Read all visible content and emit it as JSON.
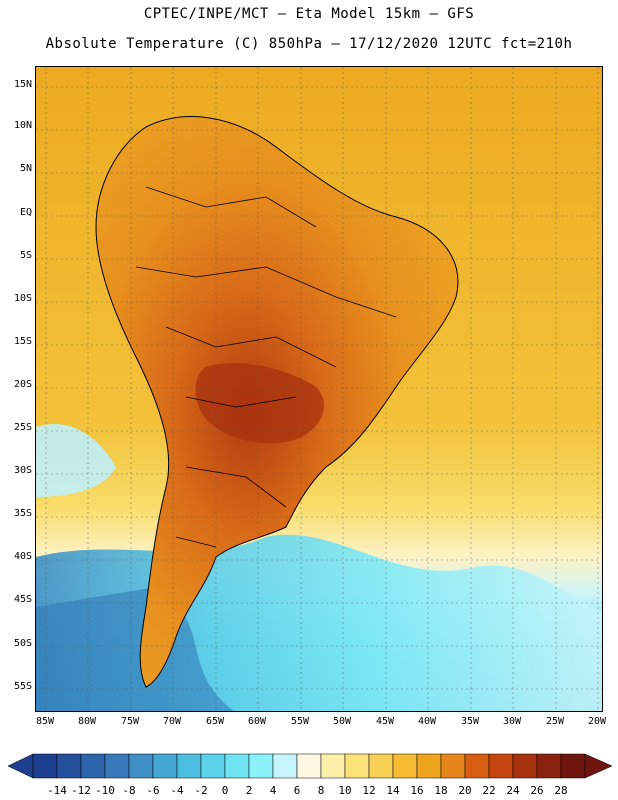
{
  "header": {
    "line1": "CPTEC/INPE/MCT –  Eta Model 15km – GFS",
    "line2": "Absolute Temperature (C) 850hPa – 17/12/2020 12UTC fct=210h"
  },
  "map": {
    "lat_labels": [
      "15N",
      "10N",
      "5N",
      "EQ",
      "5S",
      "10S",
      "15S",
      "20S",
      "25S",
      "30S",
      "35S",
      "40S",
      "45S",
      "50S",
      "55S"
    ],
    "lon_labels": [
      "85W",
      "80W",
      "75W",
      "70W",
      "65W",
      "60W",
      "55W",
      "50W",
      "45W",
      "40W",
      "35W",
      "30W",
      "25W",
      "20W"
    ]
  },
  "colorbar": {
    "labels": [
      "-14",
      "-12",
      "-10",
      "-8",
      "-6",
      "-4",
      "-2",
      "0",
      "2",
      "4",
      "6",
      "8",
      "10",
      "12",
      "14",
      "16",
      "18",
      "20",
      "22",
      "24",
      "26",
      "28"
    ],
    "colors": [
      "#1e3f8f",
      "#24509c",
      "#2e64ab",
      "#3a79b9",
      "#3f8fc6",
      "#44a6d3",
      "#4cbedf",
      "#5ad3ea",
      "#6ee4f2",
      "#8af2f8",
      "#c6f6fb",
      "#fdf6e1",
      "#fdf0a8",
      "#fbe37a",
      "#f8d055",
      "#f4bb33",
      "#eea41d",
      "#e6861a",
      "#d85e12",
      "#c64510",
      "#a8320f",
      "#8a2210",
      "#6d150e"
    ]
  }
}
